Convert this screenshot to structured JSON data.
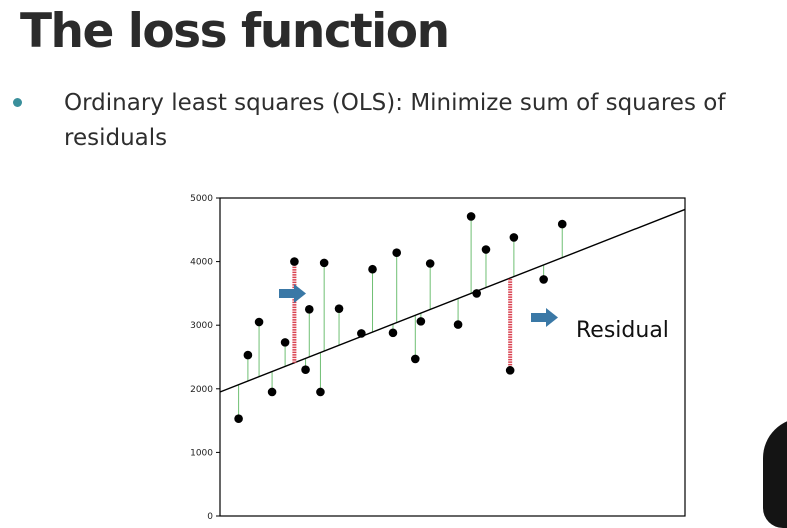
{
  "slide": {
    "title": "The loss function",
    "bullet": "Ordinary least squares (OLS): Minimize sum of squares of residuals"
  },
  "colors": {
    "bullet_accent": "#3a8f9b",
    "arrow": "#3a78a6",
    "residual_highlight": "#d9414f",
    "residual_line": "#6fbf73",
    "regression_line": "#000000",
    "points": "#000000"
  },
  "icons": {
    "arrow": "right-arrow-icon"
  },
  "chart_data": {
    "type": "scatter",
    "title": "",
    "xlabel": "",
    "ylabel": "",
    "ylim": [
      0,
      5000
    ],
    "xlim": [
      0,
      25
    ],
    "yticks": [
      0,
      1000,
      2000,
      3000,
      4000,
      5000
    ],
    "grid": false,
    "regression_line": {
      "x": [
        0,
        25
      ],
      "y": [
        1950,
        4820
      ]
    },
    "points": [
      {
        "x": 1,
        "y": 1530
      },
      {
        "x": 1.5,
        "y": 2530
      },
      {
        "x": 2.1,
        "y": 3050
      },
      {
        "x": 2.8,
        "y": 1950
      },
      {
        "x": 3.5,
        "y": 2730
      },
      {
        "x": 4.0,
        "y": 4000
      },
      {
        "x": 4.6,
        "y": 2300
      },
      {
        "x": 4.8,
        "y": 3250
      },
      {
        "x": 5.4,
        "y": 1950
      },
      {
        "x": 5.6,
        "y": 3980
      },
      {
        "x": 6.4,
        "y": 3260
      },
      {
        "x": 7.6,
        "y": 2870
      },
      {
        "x": 8.2,
        "y": 3880
      },
      {
        "x": 9.3,
        "y": 2880
      },
      {
        "x": 9.5,
        "y": 4140
      },
      {
        "x": 10.5,
        "y": 2470
      },
      {
        "x": 10.8,
        "y": 3060
      },
      {
        "x": 11.3,
        "y": 3970
      },
      {
        "x": 12.8,
        "y": 3010
      },
      {
        "x": 13.5,
        "y": 4710
      },
      {
        "x": 13.8,
        "y": 3500
      },
      {
        "x": 14.3,
        "y": 4190
      },
      {
        "x": 15.6,
        "y": 2290
      },
      {
        "x": 15.8,
        "y": 4380
      },
      {
        "x": 17.4,
        "y": 3720
      },
      {
        "x": 18.4,
        "y": 4590
      }
    ],
    "highlighted_residuals": [
      5,
      22
    ],
    "annotations": [
      {
        "text": "Residual"
      }
    ]
  }
}
